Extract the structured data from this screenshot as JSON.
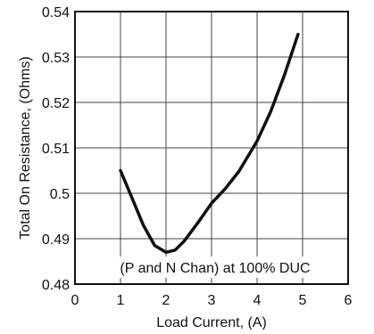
{
  "chart_data": {
    "type": "line",
    "title": "",
    "xlabel": "Load Current, (A)",
    "ylabel": "Total On Resistance, (Ohms)",
    "annotation": "(P and N Chan) at 100% DUC",
    "xlim": [
      0,
      6
    ],
    "ylim": [
      0.48,
      0.54
    ],
    "grid": true,
    "legend": "none",
    "x_ticks": [
      "0",
      "1",
      "2",
      "3",
      "4",
      "5",
      "6"
    ],
    "y_ticks": [
      "0.48",
      "0.49",
      "0.5",
      "0.51",
      "0.52",
      "0.53",
      "0.54"
    ],
    "series": [
      {
        "x": [
          1.0,
          1.25,
          1.5,
          1.75,
          2.0,
          2.2,
          2.4,
          2.7,
          3.0,
          3.3,
          3.6,
          4.0,
          4.3,
          4.6,
          4.9
        ],
        "y": [
          0.505,
          0.499,
          0.493,
          0.4885,
          0.487,
          0.4875,
          0.4895,
          0.4935,
          0.4978,
          0.501,
          0.5048,
          0.5115,
          0.518,
          0.526,
          0.535
        ]
      }
    ],
    "colors": {
      "line": "#111111",
      "grid": "#444444",
      "axis": "#111111",
      "background": "#ffffff"
    }
  }
}
